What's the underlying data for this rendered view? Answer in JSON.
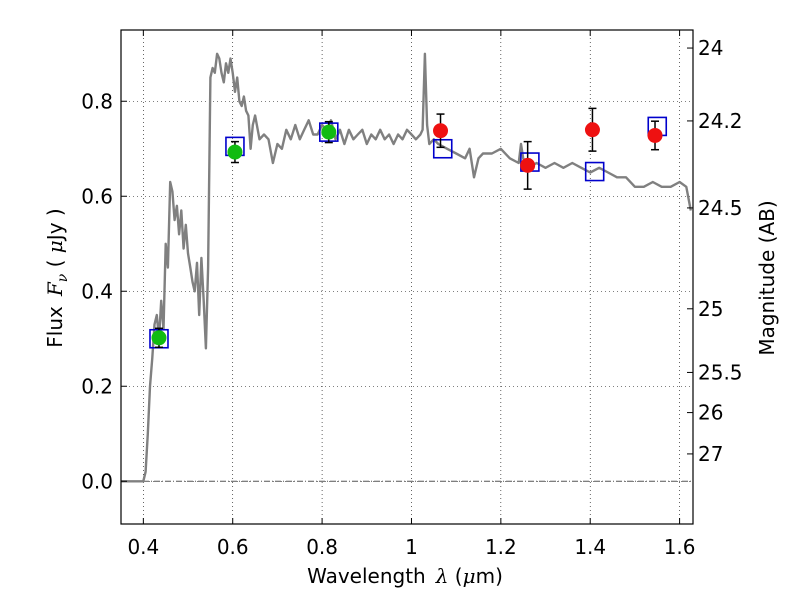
{
  "chart_data": {
    "type": "scatter",
    "xlabel_prefix": "Wavelength",
    "xlabel_symbol": "λ",
    "xlabel_unit_open": " (",
    "xlabel_unit_mu": "μ",
    "xlabel_unit_rest": "m)",
    "ylabel_prefix": "Flux",
    "ylabel_symbol": "F",
    "ylabel_subscript": "ν",
    "ylabel_unit_open": " ( ",
    "ylabel_unit_mu": "μ",
    "ylabel_unit_rest": "Jy )",
    "y2label": "Magnitude (AB)",
    "xlim": [
      0.35,
      1.63
    ],
    "ylim": [
      -0.09,
      0.95
    ],
    "grid": true,
    "x_ticks": [
      0.4,
      0.6,
      0.8,
      1.0,
      1.2,
      1.4,
      1.6
    ],
    "x_tick_labels": [
      "0.4",
      "0.6",
      "0.8",
      "1",
      "1.2",
      "1.4",
      "1.6"
    ],
    "y_ticks": [
      0.0,
      0.2,
      0.4,
      0.6,
      0.8
    ],
    "y_tick_labels": [
      "0.0",
      "0.2",
      "0.4",
      "0.6",
      "0.8"
    ],
    "mag_ticks": [
      24,
      24.2,
      24.5,
      25,
      25.5,
      26,
      27
    ],
    "mag_tick_labels": [
      "24",
      "24.2",
      "24.5",
      "25",
      "25.5",
      "26",
      "27"
    ],
    "zero_line_y": 0.0,
    "colors": {
      "sed": "#808080",
      "green": "#11bb11",
      "red": "#ee1111",
      "model": "#0000cc",
      "errorbar": "#000000"
    },
    "series": [
      {
        "name": "SED template",
        "style": "line",
        "x": [
          0.35,
          0.39,
          0.4,
          0.405,
          0.41,
          0.415,
          0.42,
          0.425,
          0.43,
          0.435,
          0.44,
          0.445,
          0.45,
          0.455,
          0.46,
          0.465,
          0.47,
          0.475,
          0.48,
          0.485,
          0.49,
          0.495,
          0.5,
          0.505,
          0.51,
          0.515,
          0.52,
          0.525,
          0.53,
          0.535,
          0.54,
          0.545,
          0.55,
          0.555,
          0.56,
          0.565,
          0.57,
          0.575,
          0.58,
          0.585,
          0.59,
          0.595,
          0.6,
          0.605,
          0.61,
          0.615,
          0.62,
          0.625,
          0.63,
          0.635,
          0.64,
          0.645,
          0.65,
          0.66,
          0.67,
          0.68,
          0.69,
          0.7,
          0.71,
          0.72,
          0.73,
          0.74,
          0.75,
          0.76,
          0.77,
          0.78,
          0.79,
          0.8,
          0.81,
          0.82,
          0.83,
          0.84,
          0.85,
          0.86,
          0.87,
          0.88,
          0.89,
          0.9,
          0.91,
          0.92,
          0.93,
          0.94,
          0.95,
          0.96,
          0.97,
          0.98,
          0.99,
          1.0,
          1.01,
          1.02,
          1.025,
          1.03,
          1.035,
          1.04,
          1.05,
          1.06,
          1.08,
          1.1,
          1.12,
          1.13,
          1.14,
          1.15,
          1.16,
          1.18,
          1.2,
          1.22,
          1.24,
          1.245,
          1.25,
          1.26,
          1.28,
          1.3,
          1.32,
          1.34,
          1.36,
          1.38,
          1.4,
          1.42,
          1.44,
          1.46,
          1.48,
          1.5,
          1.52,
          1.54,
          1.56,
          1.58,
          1.6,
          1.615,
          1.625
        ],
        "y": [
          0.0,
          0.0,
          0.0,
          0.02,
          0.1,
          0.2,
          0.26,
          0.33,
          0.35,
          0.3,
          0.38,
          0.32,
          0.5,
          0.45,
          0.63,
          0.61,
          0.55,
          0.58,
          0.52,
          0.57,
          0.49,
          0.54,
          0.48,
          0.45,
          0.42,
          0.4,
          0.46,
          0.35,
          0.47,
          0.38,
          0.28,
          0.45,
          0.85,
          0.87,
          0.86,
          0.9,
          0.89,
          0.86,
          0.84,
          0.88,
          0.86,
          0.89,
          0.86,
          0.82,
          0.85,
          0.8,
          0.79,
          0.81,
          0.78,
          0.77,
          0.7,
          0.75,
          0.77,
          0.72,
          0.73,
          0.72,
          0.67,
          0.71,
          0.7,
          0.74,
          0.72,
          0.75,
          0.72,
          0.74,
          0.76,
          0.73,
          0.73,
          0.75,
          0.74,
          0.76,
          0.72,
          0.74,
          0.71,
          0.74,
          0.72,
          0.73,
          0.74,
          0.71,
          0.73,
          0.72,
          0.74,
          0.72,
          0.73,
          0.71,
          0.73,
          0.72,
          0.74,
          0.73,
          0.72,
          0.73,
          0.74,
          0.9,
          0.75,
          0.71,
          0.72,
          0.71,
          0.7,
          0.69,
          0.68,
          0.7,
          0.64,
          0.68,
          0.69,
          0.69,
          0.7,
          0.68,
          0.67,
          0.71,
          0.68,
          0.66,
          0.67,
          0.66,
          0.67,
          0.66,
          0.67,
          0.66,
          0.65,
          0.66,
          0.65,
          0.64,
          0.64,
          0.62,
          0.62,
          0.63,
          0.62,
          0.62,
          0.63,
          0.62,
          0.57
        ]
      },
      {
        "name": "Photometry (green)",
        "style": "marker",
        "marker": "circle",
        "color_key": "green",
        "x": [
          0.435,
          0.605,
          0.815
        ],
        "y": [
          0.302,
          0.693,
          0.735
        ],
        "yerr": [
          0.02,
          0.022,
          0.022
        ]
      },
      {
        "name": "Photometry (red)",
        "style": "marker",
        "marker": "circle",
        "color_key": "red",
        "x": [
          1.065,
          1.26,
          1.405,
          1.545
        ],
        "y": [
          0.738,
          0.665,
          0.74,
          0.728
        ],
        "yerr": [
          0.035,
          0.05,
          0.045,
          0.03
        ]
      },
      {
        "name": "Model photometry",
        "style": "marker",
        "marker": "square",
        "color_key": "model",
        "x": [
          0.435,
          0.605,
          0.815,
          1.07,
          1.265,
          1.41,
          1.55
        ],
        "y": [
          0.3,
          0.705,
          0.735,
          0.7,
          0.672,
          0.652,
          0.747
        ]
      }
    ]
  }
}
